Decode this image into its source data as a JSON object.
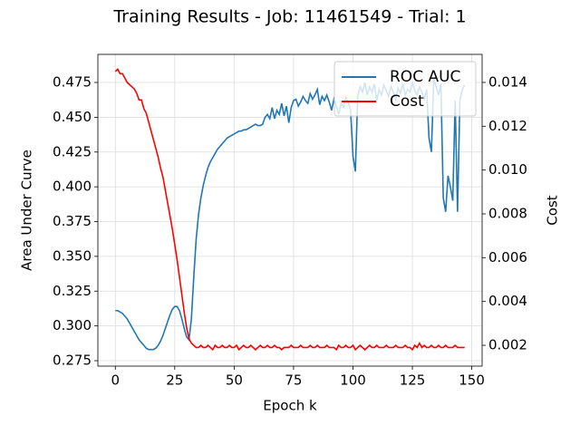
{
  "chart_data": {
    "type": "line",
    "title": "Training Results - Job: 11461549 - Trial: 1",
    "x_label": "Epoch k",
    "y_label": "Area Under Curve",
    "y2_label": "Cost",
    "x": [
      0,
      1,
      2,
      3,
      4,
      5,
      6,
      7,
      8,
      9,
      10,
      11,
      12,
      13,
      14,
      15,
      16,
      17,
      18,
      19,
      20,
      21,
      22,
      23,
      24,
      25,
      26,
      27,
      28,
      29,
      30,
      31,
      32,
      33,
      34,
      35,
      36,
      37,
      38,
      39,
      40,
      41,
      42,
      43,
      44,
      45,
      46,
      47,
      48,
      49,
      50,
      51,
      52,
      53,
      54,
      55,
      56,
      57,
      58,
      59,
      60,
      61,
      62,
      63,
      64,
      65,
      66,
      67,
      68,
      69,
      70,
      71,
      72,
      73,
      74,
      75,
      76,
      77,
      78,
      79,
      80,
      81,
      82,
      83,
      84,
      85,
      86,
      87,
      88,
      89,
      90,
      91,
      92,
      93,
      94,
      95,
      96,
      97,
      98,
      99,
      100,
      101,
      102,
      103,
      104,
      105,
      106,
      107,
      108,
      109,
      110,
      111,
      112,
      113,
      114,
      115,
      116,
      117,
      118,
      119,
      120,
      121,
      122,
      123,
      124,
      125,
      126,
      127,
      128,
      129,
      130,
      131,
      132,
      133,
      134,
      135,
      136,
      137,
      138,
      139,
      140,
      141,
      142,
      143,
      144,
      145,
      146,
      147
    ],
    "series": [
      {
        "name": "ROC AUC",
        "color": "#1f77b4",
        "axis": "y",
        "values": [
          0.311,
          0.311,
          0.31,
          0.309,
          0.307,
          0.305,
          0.302,
          0.299,
          0.296,
          0.293,
          0.29,
          0.288,
          0.286,
          0.284,
          0.283,
          0.283,
          0.283,
          0.284,
          0.286,
          0.289,
          0.293,
          0.298,
          0.303,
          0.308,
          0.312,
          0.314,
          0.314,
          0.311,
          0.305,
          0.298,
          0.292,
          0.29,
          0.305,
          0.335,
          0.362,
          0.38,
          0.392,
          0.401,
          0.408,
          0.414,
          0.418,
          0.421,
          0.424,
          0.427,
          0.429,
          0.431,
          0.433,
          0.435,
          0.436,
          0.437,
          0.438,
          0.439,
          0.44,
          0.44,
          0.441,
          0.441,
          0.442,
          0.443,
          0.444,
          0.445,
          0.444,
          0.444,
          0.445,
          0.45,
          0.452,
          0.449,
          0.457,
          0.449,
          0.455,
          0.452,
          0.46,
          0.451,
          0.458,
          0.446,
          0.457,
          0.462,
          0.463,
          0.458,
          0.461,
          0.465,
          0.462,
          0.46,
          0.467,
          0.463,
          0.466,
          0.47,
          0.459,
          0.465,
          0.462,
          0.466,
          0.461,
          0.455,
          0.463,
          0.458,
          0.452,
          0.46,
          0.457,
          0.464,
          0.461,
          0.455,
          0.422,
          0.411,
          0.465,
          0.472,
          0.468,
          0.475,
          0.466,
          0.472,
          0.468,
          0.474,
          0.462,
          0.47,
          0.466,
          0.473,
          0.469,
          0.465,
          0.472,
          0.468,
          0.463,
          0.471,
          0.467,
          0.474,
          0.466,
          0.47,
          0.468,
          0.475,
          0.469,
          0.466,
          0.472,
          0.468,
          0.463,
          0.47,
          0.435,
          0.425,
          0.478,
          0.472,
          0.466,
          0.474,
          0.392,
          0.382,
          0.408,
          0.4,
          0.39,
          0.462,
          0.382,
          0.462,
          0.47,
          0.473
        ]
      },
      {
        "name": "Cost",
        "color": "#ff0000",
        "axis": "y2",
        "values": [
          0.0145,
          0.0146,
          0.0144,
          0.0144,
          0.0142,
          0.014,
          0.0139,
          0.0138,
          0.0137,
          0.0135,
          0.0132,
          0.0132,
          0.0128,
          0.0126,
          0.0122,
          0.0118,
          0.0114,
          0.011,
          0.0106,
          0.0101,
          0.0097,
          0.0091,
          0.0085,
          0.0079,
          0.0073,
          0.0066,
          0.0059,
          0.0051,
          0.0043,
          0.0035,
          0.0028,
          0.0023,
          0.0021,
          0.002,
          0.0019,
          0.0019,
          0.002,
          0.0019,
          0.0019,
          0.002,
          0.0019,
          0.0018,
          0.002,
          0.0019,
          0.0019,
          0.002,
          0.0019,
          0.0019,
          0.002,
          0.0019,
          0.0019,
          0.002,
          0.0018,
          0.0019,
          0.002,
          0.0019,
          0.0019,
          0.002,
          0.0019,
          0.0018,
          0.0019,
          0.002,
          0.0019,
          0.0019,
          0.002,
          0.0019,
          0.0019,
          0.002,
          0.0019,
          0.0019,
          0.0018,
          0.0019,
          0.0019,
          0.0019,
          0.002,
          0.0019,
          0.0019,
          0.0019,
          0.002,
          0.0019,
          0.0019,
          0.0019,
          0.002,
          0.0019,
          0.0019,
          0.002,
          0.0019,
          0.0019,
          0.0019,
          0.002,
          0.0019,
          0.0019,
          0.0019,
          0.0018,
          0.002,
          0.0019,
          0.0019,
          0.002,
          0.0019,
          0.0019,
          0.002,
          0.0018,
          0.0019,
          0.002,
          0.0019,
          0.0018,
          0.0019,
          0.002,
          0.0019,
          0.0019,
          0.002,
          0.0019,
          0.0019,
          0.0019,
          0.002,
          0.0019,
          0.0019,
          0.0019,
          0.002,
          0.0019,
          0.0019,
          0.0019,
          0.002,
          0.0019,
          0.0019,
          0.0018,
          0.002,
          0.0019,
          0.0021,
          0.0019,
          0.002,
          0.0019,
          0.0019,
          0.002,
          0.0019,
          0.0019,
          0.002,
          0.0019,
          0.0019,
          0.002,
          0.0019,
          0.0019,
          0.0019,
          0.002,
          0.0019,
          0.0019,
          0.0019,
          0.0019
        ]
      }
    ],
    "xlim": [
      -7.35,
      154.35
    ],
    "ylim": [
      0.2711,
      0.4952
    ],
    "y2lim": [
      0.00105,
      0.01528
    ],
    "xticks": [
      0,
      25,
      50,
      75,
      100,
      125,
      150
    ],
    "yticks": [
      0.275,
      {
        "value": 0.3,
        "label": "0.300"
      },
      0.325,
      {
        "value": 0.35,
        "label": "0.350"
      },
      0.375,
      {
        "value": 0.4,
        "label": "0.400"
      },
      0.425,
      {
        "value": 0.45,
        "label": "0.450"
      },
      0.475
    ],
    "y2ticks": [
      0.002,
      0.004,
      0.006,
      0.008,
      {
        "value": 0.01,
        "label": "0.010"
      },
      0.012,
      0.014
    ],
    "grid": true,
    "legend": "upper right"
  }
}
